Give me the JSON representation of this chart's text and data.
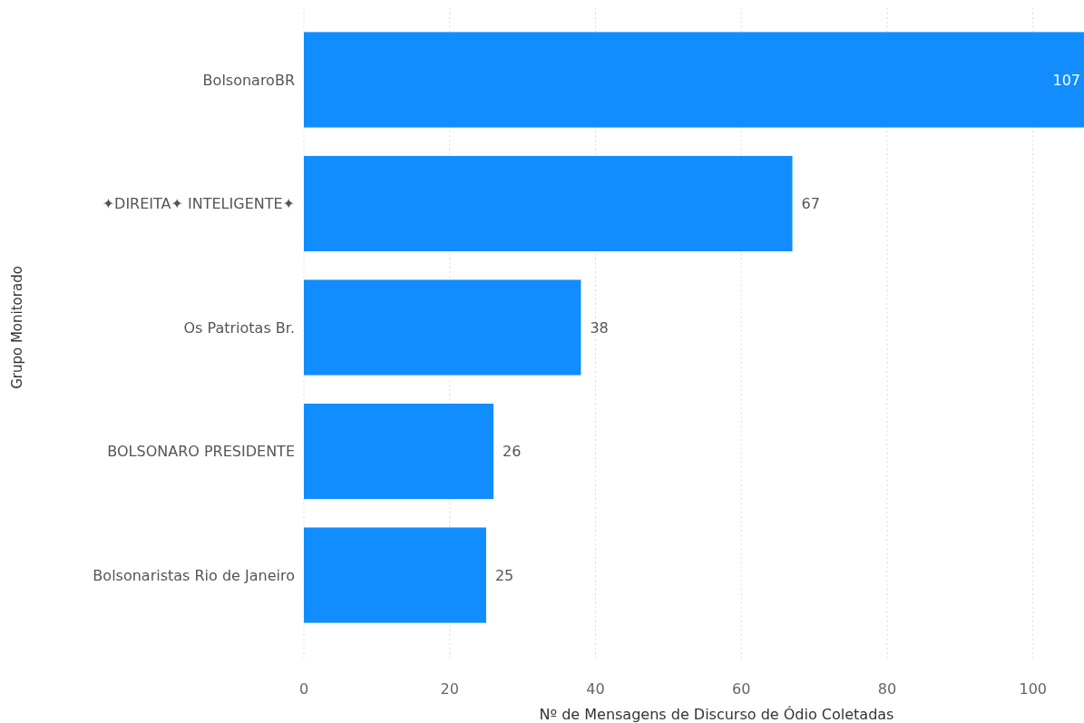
{
  "chart_data": {
    "type": "bar",
    "orientation": "horizontal",
    "xlabel": "Nº de Mensagens de Discurso de Ódio Coletadas",
    "ylabel": "Grupo Monitorado",
    "categories": [
      "BolsonaroBR",
      "✦DIREITA✦ INTELIGENTE✦",
      "Os Patriotas Br.",
      "BOLSONARO PRESIDENTE",
      "Bolsonaristas Rio de Janeiro"
    ],
    "values": [
      107,
      67,
      38,
      26,
      25
    ],
    "color": "#118dff",
    "xlim": [
      0,
      107
    ],
    "xticks": [
      0,
      20,
      40,
      60,
      80,
      100
    ],
    "grid": "x",
    "data_labels": true
  }
}
